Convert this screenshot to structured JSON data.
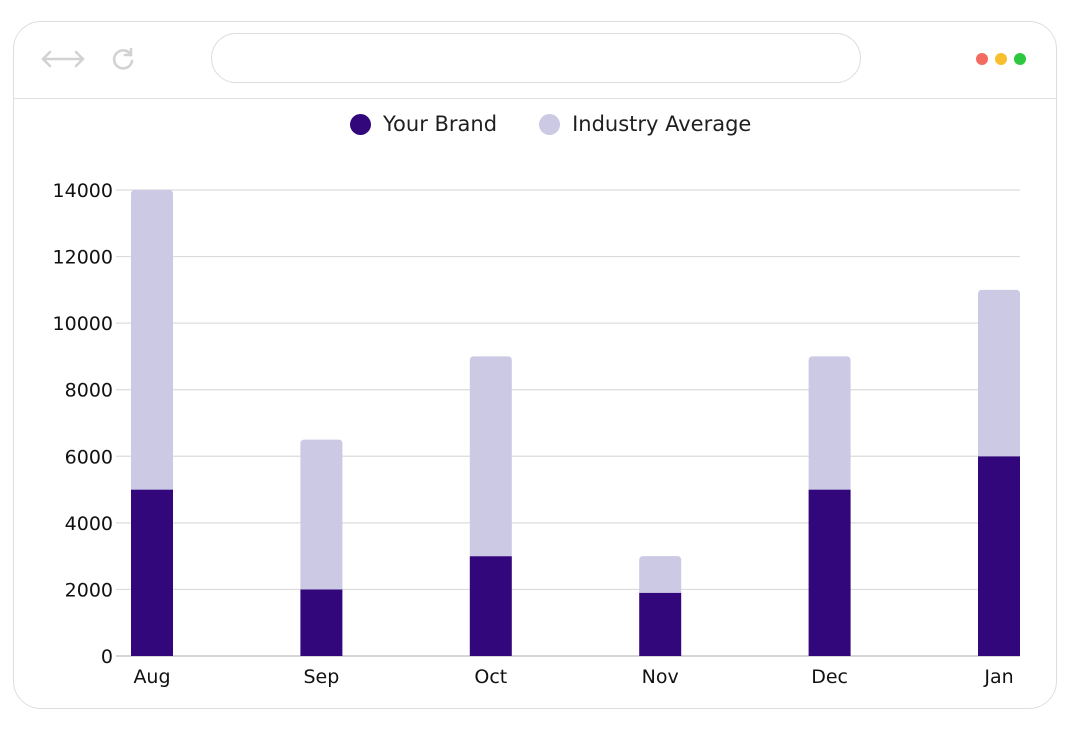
{
  "browser": {
    "address": "",
    "window_dots": [
      "#f26b60",
      "#f7bf2e",
      "#2ec840"
    ],
    "nav_icon": "back-forward-arrows-icon",
    "reload_icon": "reload-icon",
    "icon_color": "#d2d2d2"
  },
  "chart_data": {
    "type": "bar",
    "stacked": true,
    "title": "",
    "xlabel": "",
    "ylabel": "",
    "categories": [
      "Aug",
      "Sep",
      "Oct",
      "Nov",
      "Dec",
      "Jan"
    ],
    "series": [
      {
        "name": "Your Brand",
        "color": "#33077c",
        "values": [
          5000,
          2000,
          3000,
          1900,
          5000,
          6000
        ]
      },
      {
        "name": "Industry Average",
        "color": "#cbc9e4",
        "values": [
          9000,
          4500,
          6000,
          1100,
          4000,
          5000
        ]
      }
    ],
    "ylim": [
      0,
      14000
    ],
    "yticks": [
      0,
      2000,
      4000,
      6000,
      8000,
      10000,
      12000,
      14000
    ],
    "grid": true,
    "legend": "top-center"
  }
}
